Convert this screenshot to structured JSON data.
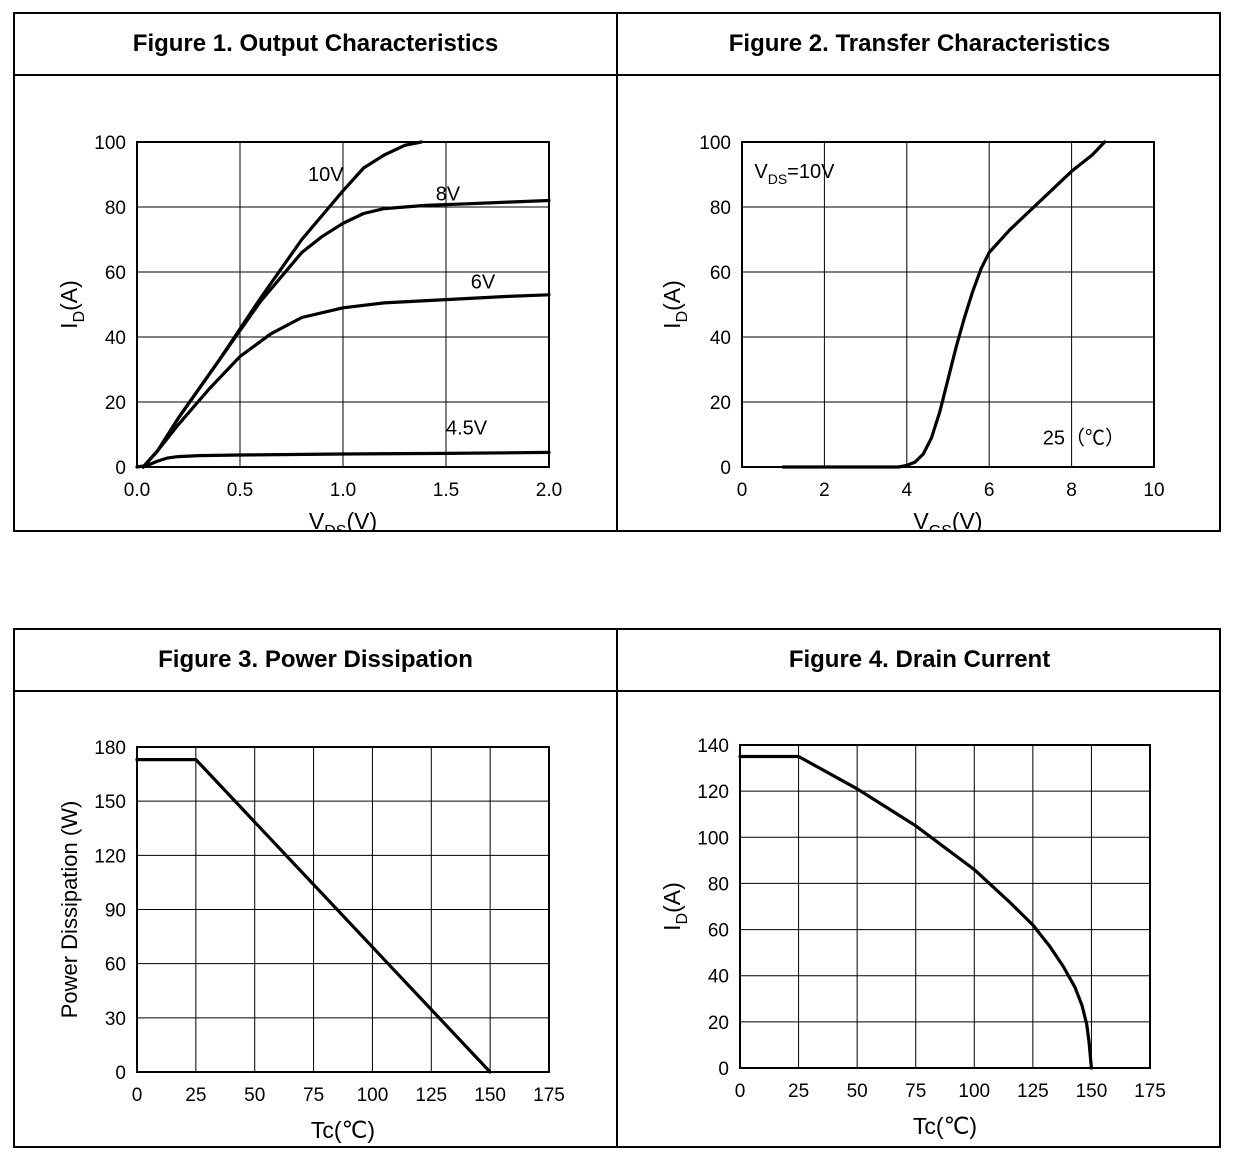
{
  "chart_data": [
    {
      "id": "fig1",
      "type": "line",
      "title": "Figure 1. Output Characteristics",
      "xlabel_main": "V",
      "xlabel_sub": "DS",
      "xlabel_tail": "(V)",
      "ylabel_main": "I",
      "ylabel_sub": "D",
      "ylabel_tail": "(A)",
      "xlim": [
        0,
        2.0
      ],
      "ylim": [
        0,
        100
      ],
      "xticks": [
        0,
        0.5,
        1.0,
        1.5,
        2.0
      ],
      "xtick_labels": [
        "0.0",
        "0.5",
        "1.0",
        "1.5",
        "2.0"
      ],
      "yticks": [
        0,
        20,
        40,
        60,
        80,
        100
      ],
      "ytick_labels": [
        "0",
        "20",
        "40",
        "60",
        "80",
        "100"
      ],
      "grid": true,
      "series": [
        {
          "name": "10V",
          "x": [
            0.03,
            0.1,
            0.2,
            0.4,
            0.6,
            0.8,
            1.0,
            1.1,
            1.2,
            1.3,
            1.38
          ],
          "y": [
            0,
            5,
            15,
            33,
            52,
            70,
            85,
            92,
            96,
            99,
            100
          ]
        },
        {
          "name": "8V",
          "x": [
            0.03,
            0.1,
            0.2,
            0.4,
            0.6,
            0.8,
            0.9,
            1.0,
            1.1,
            1.2,
            1.4,
            1.6,
            1.8,
            2.0
          ],
          "y": [
            0,
            5,
            15,
            33,
            51,
            66,
            71,
            75,
            78,
            79.5,
            80.5,
            81,
            81.5,
            82
          ]
        },
        {
          "name": "6V",
          "x": [
            0.03,
            0.1,
            0.2,
            0.35,
            0.5,
            0.65,
            0.8,
            1.0,
            1.2,
            1.5,
            1.8,
            2.0
          ],
          "y": [
            0,
            5,
            13,
            24,
            34,
            41,
            46,
            49,
            50.5,
            51.5,
            52.5,
            53
          ]
        },
        {
          "name": "4.5V",
          "x": [
            0.0,
            0.05,
            0.1,
            0.15,
            0.2,
            0.3,
            0.5,
            1.0,
            1.5,
            2.0
          ],
          "y": [
            0,
            0.5,
            1.8,
            2.8,
            3.2,
            3.5,
            3.7,
            4,
            4.2,
            4.5
          ]
        }
      ],
      "annotations": [
        {
          "text": "10V",
          "x": 0.83,
          "y": 88
        },
        {
          "text": "8V",
          "x": 1.45,
          "y": 82
        },
        {
          "text": "6V",
          "x": 1.62,
          "y": 55
        },
        {
          "text": "4.5V",
          "x": 1.5,
          "y": 10
        }
      ]
    },
    {
      "id": "fig2",
      "type": "line",
      "title": "Figure 2. Transfer Characteristics",
      "xlabel_main": "V",
      "xlabel_sub": "GS",
      "xlabel_tail": "(V)",
      "ylabel_main": "I",
      "ylabel_sub": "D",
      "ylabel_tail": "(A)",
      "xlim": [
        0,
        10
      ],
      "ylim": [
        0,
        100
      ],
      "xticks": [
        0,
        2,
        4,
        6,
        8,
        10
      ],
      "xtick_labels": [
        "0",
        "2",
        "4",
        "6",
        "8",
        "10"
      ],
      "yticks": [
        0,
        20,
        40,
        60,
        80,
        100
      ],
      "ytick_labels": [
        "0",
        "20",
        "40",
        "60",
        "80",
        "100"
      ],
      "grid": true,
      "series": [
        {
          "name": "25",
          "x": [
            1.0,
            2.0,
            3.0,
            3.8,
            4.0,
            4.2,
            4.4,
            4.6,
            4.8,
            5.0,
            5.2,
            5.4,
            5.6,
            5.8,
            6.0,
            6.5,
            7.0,
            7.5,
            8.0,
            8.5,
            8.8
          ],
          "y": [
            0,
            0,
            0,
            0,
            0.5,
            1.5,
            4,
            9,
            17,
            27,
            37,
            46,
            54,
            61,
            66,
            73,
            79,
            85,
            91,
            96,
            100
          ]
        }
      ],
      "annotations": [
        {
          "text_main": "V",
          "text_sub": "DS",
          "text_tail": "=10V",
          "x": 0.3,
          "y": 89
        },
        {
          "text": "25（℃）",
          "x": 7.3,
          "y": 7
        }
      ]
    },
    {
      "id": "fig3",
      "type": "line",
      "title": "Figure 3. Power Dissipation",
      "xlabel": "Tc(℃)",
      "ylabel": "Power Dissipation (W)",
      "xlim": [
        0,
        175
      ],
      "ylim": [
        0,
        180
      ],
      "xticks": [
        0,
        25,
        50,
        75,
        100,
        125,
        150,
        175
      ],
      "xtick_labels": [
        "0",
        "25",
        "50",
        "75",
        "100",
        "125",
        "150",
        "175"
      ],
      "yticks": [
        0,
        30,
        60,
        90,
        120,
        150,
        180
      ],
      "ytick_labels": [
        "0",
        "30",
        "60",
        "90",
        "120",
        "150",
        "180"
      ],
      "grid": true,
      "series": [
        {
          "name": "Power Dissipation",
          "x": [
            0,
            25,
            150
          ],
          "y": [
            173,
            173,
            0
          ]
        }
      ]
    },
    {
      "id": "fig4",
      "type": "line",
      "title": "Figure 4. Drain Current",
      "xlabel": "Tc(℃)",
      "ylabel_main": "I",
      "ylabel_sub": "D",
      "ylabel_tail": "(A)",
      "xlim": [
        0,
        175
      ],
      "ylim": [
        0,
        140
      ],
      "xticks": [
        0,
        25,
        50,
        75,
        100,
        125,
        150,
        175
      ],
      "xtick_labels": [
        "0",
        "25",
        "50",
        "75",
        "100",
        "125",
        "150",
        "175"
      ],
      "yticks": [
        0,
        20,
        40,
        60,
        80,
        100,
        120,
        140
      ],
      "ytick_labels": [
        "0",
        "20",
        "40",
        "60",
        "80",
        "100",
        "120",
        "140"
      ],
      "grid": true,
      "series": [
        {
          "name": "Drain Current",
          "x": [
            0,
            25,
            50,
            75,
            100,
            115,
            125,
            132,
            138,
            143,
            146,
            148,
            149,
            150
          ],
          "y": [
            135,
            135,
            121,
            105,
            86,
            72,
            62,
            53,
            44,
            35,
            27,
            19,
            11,
            0
          ]
        }
      ]
    }
  ]
}
